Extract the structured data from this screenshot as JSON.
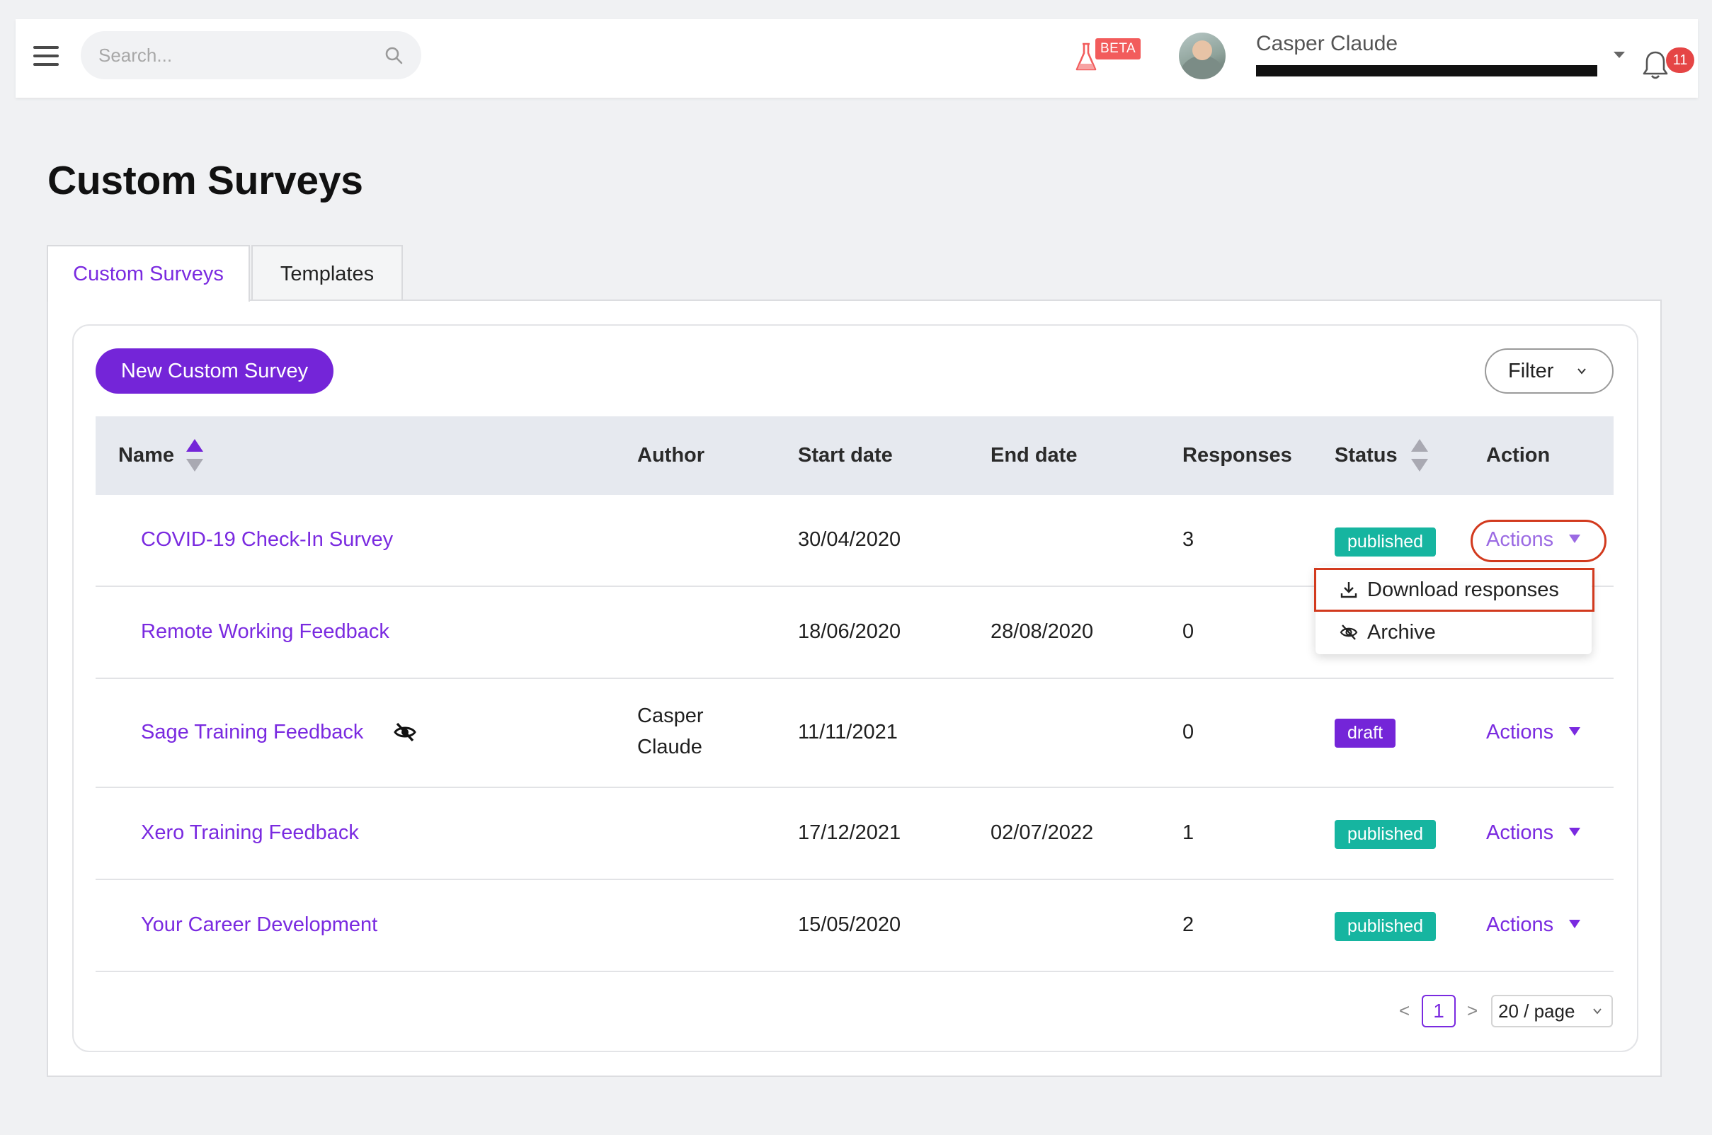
{
  "header": {
    "search_placeholder": "Search...",
    "beta_label": "BETA",
    "user_name": "Casper Claude",
    "notification_count": "11"
  },
  "page": {
    "title": "Custom Surveys",
    "tabs": [
      {
        "label": "Custom Surveys",
        "active": true
      },
      {
        "label": "Templates",
        "active": false
      }
    ]
  },
  "toolbar": {
    "new_button": "New Custom Survey",
    "filter_button": "Filter"
  },
  "table": {
    "columns": [
      "Name",
      "Author",
      "Start date",
      "End date",
      "Responses",
      "Status",
      "Action"
    ],
    "rows": [
      {
        "name": "COVID-19 Check-In Survey",
        "author": "",
        "author_line2": "",
        "start": "30/04/2020",
        "end": "",
        "responses": "3",
        "status": "published",
        "action": "Actions",
        "hidden": false
      },
      {
        "name": "Remote Working Feedback",
        "author": "",
        "author_line2": "",
        "start": "18/06/2020",
        "end": "28/08/2020",
        "responses": "0",
        "status": "",
        "action": "",
        "hidden": false
      },
      {
        "name": "Sage Training Feedback",
        "author": "Casper",
        "author_line2": "Claude",
        "start": "11/11/2021",
        "end": "",
        "responses": "0",
        "status": "draft",
        "action": "Actions",
        "hidden": true
      },
      {
        "name": "Xero Training Feedback",
        "author": "",
        "author_line2": "",
        "start": "17/12/2021",
        "end": "02/07/2022",
        "responses": "1",
        "status": "published",
        "action": "Actions",
        "hidden": false
      },
      {
        "name": "Your Career Development",
        "author": "",
        "author_line2": "",
        "start": "15/05/2020",
        "end": "",
        "responses": "2",
        "status": "published",
        "action": "Actions",
        "hidden": false
      }
    ]
  },
  "dropdown": {
    "items": [
      {
        "label": "Download responses",
        "icon": "download-icon"
      },
      {
        "label": "Archive",
        "icon": "eye-off-icon"
      }
    ]
  },
  "pagination": {
    "current_page": "1",
    "prev": "<",
    "next": ">",
    "page_size": "20 / page"
  },
  "colors": {
    "accent": "#7425d8",
    "link": "#7a2ae0",
    "published": "#16b5a0",
    "draft": "#7425d8",
    "highlight": "#d23a1e"
  }
}
